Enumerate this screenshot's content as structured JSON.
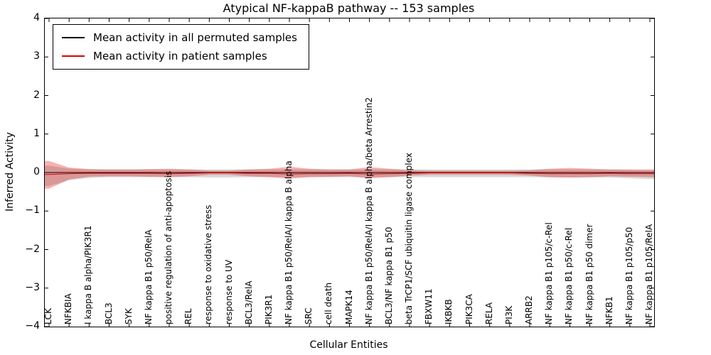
{
  "chart_data": {
    "type": "line",
    "title": "Atypical NF-kappaB pathway -- 153 samples",
    "xlabel": "Cellular Entities",
    "ylabel": "Inferred Activity",
    "ylim": [
      -4,
      4
    ],
    "grid": false,
    "legend_position": "upper left",
    "y_ticks": [
      "4",
      "3",
      "2",
      "1",
      "0",
      "−1",
      "−2",
      "−3",
      "−4"
    ],
    "categories": [
      "LCK",
      "NFKBIA",
      "I kappa B alpha/PIK3R1",
      "BCL3",
      "SYK",
      "NF kappa B1 p50/RelA",
      "positive regulation of anti-apoptosis",
      "REL",
      "response to oxidative stress",
      "response to UV",
      "BCL3/RelA",
      "PIK3R1",
      "NF kappa B1 p50/RelA/I kappa B alpha",
      "SRC",
      "cell death",
      "MAPK14",
      "NF kappa B1 p50/RelA/I kappa B alpha/beta Arrestin2",
      "BCL3/NF kappa B1 p50",
      "beta TrCP1/SCF ubiquitin ligase complex",
      "FBXW11",
      "IKBKB",
      "PIK3CA",
      "RELA",
      "PI3K",
      "ARRB2",
      "NF kappa B1 p105/c-Rel",
      "NF kappa B1 p50/c-Rel",
      "NF kappa B1 p50 dimer",
      "NFKB1",
      "NF kappa B1 p105/p50",
      "NF kappa B1 p105/RelA"
    ],
    "series": [
      {
        "name": "Mean activity in all permuted samples",
        "color": "#000000",
        "values": [
          0,
          0,
          0,
          0,
          0,
          0,
          0,
          0,
          0,
          0,
          0,
          0,
          0,
          0,
          0,
          0,
          0,
          0,
          0,
          0,
          0,
          0,
          0,
          0,
          0,
          0,
          0,
          0,
          0,
          0,
          0
        ]
      },
      {
        "name": "Mean activity in patient samples",
        "color": "#dd0000",
        "values": [
          -0.05,
          -0.03,
          -0.02,
          -0.02,
          -0.02,
          -0.02,
          -0.03,
          -0.02,
          -0.01,
          -0.01,
          -0.02,
          -0.02,
          -0.04,
          -0.03,
          -0.03,
          -0.02,
          -0.04,
          -0.03,
          -0.02,
          -0.01,
          -0.01,
          -0.01,
          -0.01,
          -0.01,
          -0.02,
          -0.03,
          -0.03,
          -0.03,
          -0.02,
          -0.03,
          -0.03
        ]
      }
    ],
    "bands": [
      {
        "name": "permuted-samples-range-band",
        "color": "rgba(0,0,0,0.15)",
        "upper": [
          0.18,
          0.1,
          0.08,
          0.08,
          0.08,
          0.08,
          0.08,
          0.08,
          0.08,
          0.08,
          0.08,
          0.08,
          0.08,
          0.08,
          0.08,
          0.08,
          0.08,
          0.08,
          0.08,
          0.08,
          0.08,
          0.08,
          0.08,
          0.08,
          0.08,
          0.08,
          0.08,
          0.08,
          0.08,
          0.07,
          0.06
        ],
        "lower": [
          -0.35,
          -0.2,
          -0.14,
          -0.12,
          -0.12,
          -0.12,
          -0.12,
          -0.12,
          -0.13,
          -0.13,
          -0.12,
          -0.12,
          -0.12,
          -0.12,
          -0.12,
          -0.12,
          -0.12,
          -0.12,
          -0.12,
          -0.12,
          -0.12,
          -0.12,
          -0.12,
          -0.12,
          -0.12,
          -0.13,
          -0.13,
          -0.13,
          -0.13,
          -0.15,
          -0.17
        ]
      },
      {
        "name": "patient-samples-range-band",
        "color": "rgba(221,0,0,0.30)",
        "upper": [
          0.3,
          0.13,
          0.09,
          0.08,
          0.08,
          0.09,
          0.1,
          0.08,
          0.05,
          0.05,
          0.08,
          0.1,
          0.15,
          0.1,
          0.08,
          0.08,
          0.14,
          0.1,
          0.06,
          0.05,
          0.05,
          0.05,
          0.05,
          0.05,
          0.06,
          0.1,
          0.12,
          0.1,
          0.08,
          0.08,
          0.08
        ],
        "lower": [
          -0.42,
          -0.18,
          -0.11,
          -0.1,
          -0.1,
          -0.11,
          -0.12,
          -0.1,
          -0.06,
          -0.06,
          -0.1,
          -0.12,
          -0.16,
          -0.12,
          -0.11,
          -0.1,
          -0.15,
          -0.12,
          -0.08,
          -0.06,
          -0.06,
          -0.06,
          -0.06,
          -0.06,
          -0.08,
          -0.12,
          -0.13,
          -0.12,
          -0.1,
          -0.11,
          -0.12
        ]
      }
    ]
  }
}
